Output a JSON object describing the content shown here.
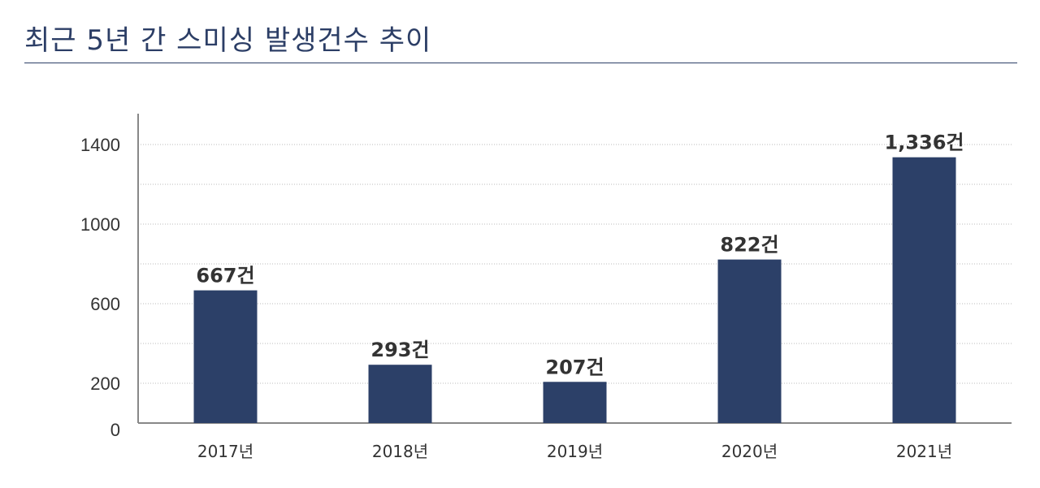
{
  "page": {
    "title": "최근 5년 간 스미싱 발생건수 추이"
  },
  "chart_data": {
    "type": "bar",
    "title": "최근 5년 간 스미싱 발생건수 추이",
    "categories": [
      "2017년",
      "2018년",
      "2019년",
      "2020년",
      "2021년"
    ],
    "values": [
      667,
      293,
      207,
      822,
      1336
    ],
    "data_labels": [
      "667건",
      "293건",
      "207건",
      "822건",
      "1,336건"
    ],
    "yticks": [
      0,
      200,
      600,
      1000,
      1400
    ],
    "ylim": [
      0,
      1550
    ],
    "xlabel": "",
    "ylabel": "",
    "grid": true,
    "legend": "none",
    "bar_color": "#2c4068",
    "grid_color": "#bbbbbb",
    "axis_color": "#888888"
  }
}
